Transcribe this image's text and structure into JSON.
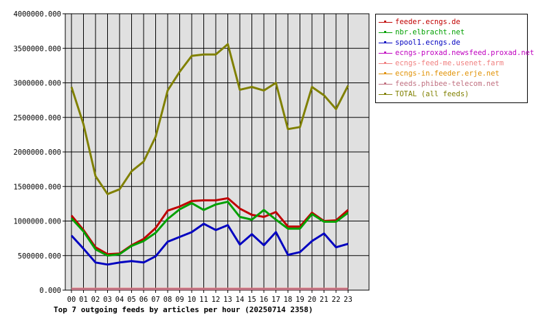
{
  "chart_data": {
    "type": "line",
    "title": "Top 7 outgoing feeds by articles per hour (20250714 2358)",
    "x": [
      "00",
      "01",
      "02",
      "03",
      "04",
      "05",
      "06",
      "07",
      "08",
      "09",
      "10",
      "11",
      "12",
      "13",
      "14",
      "15",
      "16",
      "17",
      "18",
      "19",
      "20",
      "21",
      "22",
      "23"
    ],
    "ylim": [
      0,
      4000000
    ],
    "y_ticks": [
      "0.000",
      "500000.000",
      "1000000.000",
      "1500000.000",
      "2000000.000",
      "2500000.000",
      "3000000.000",
      "3500000.000",
      "4000000.000"
    ],
    "grid": true,
    "legend_position": "top-right",
    "series": [
      {
        "name": "feeder.ecngs.de",
        "color": "#c00000",
        "values": [
          1080000,
          870000,
          620000,
          520000,
          530000,
          650000,
          740000,
          900000,
          1150000,
          1210000,
          1290000,
          1300000,
          1300000,
          1330000,
          1180000,
          1090000,
          1060000,
          1130000,
          920000,
          920000,
          1120000,
          1000000,
          1010000,
          1160000
        ]
      },
      {
        "name": "nbr.elbracht.net",
        "color": "#00a000",
        "values": [
          1040000,
          850000,
          590000,
          500000,
          520000,
          640000,
          710000,
          830000,
          1030000,
          1170000,
          1260000,
          1160000,
          1240000,
          1280000,
          1060000,
          1020000,
          1160000,
          1020000,
          890000,
          890000,
          1100000,
          990000,
          990000,
          1120000
        ]
      },
      {
        "name": "spool1.ecngs.de",
        "color": "#0000c0",
        "values": [
          790000,
          600000,
          400000,
          370000,
          400000,
          420000,
          400000,
          490000,
          700000,
          770000,
          840000,
          960000,
          870000,
          940000,
          660000,
          810000,
          650000,
          840000,
          510000,
          550000,
          710000,
          820000,
          620000,
          670000
        ]
      },
      {
        "name": "ecngs-proxad.newsfeed.proxad.net",
        "color": "#c000c0",
        "values": [
          20000,
          20000,
          20000,
          20000,
          20000,
          20000,
          20000,
          20000,
          20000,
          20000,
          20000,
          20000,
          20000,
          20000,
          20000,
          20000,
          20000,
          20000,
          20000,
          20000,
          20000,
          20000,
          20000,
          20000
        ]
      },
      {
        "name": "ecngs-feed-me.usenet.farm",
        "color": "#f08080",
        "values": [
          20000,
          20000,
          20000,
          20000,
          20000,
          20000,
          20000,
          20000,
          20000,
          20000,
          20000,
          20000,
          20000,
          20000,
          20000,
          20000,
          20000,
          20000,
          20000,
          20000,
          20000,
          20000,
          20000,
          20000
        ]
      },
      {
        "name": "ecngs-in.feeder.erje.net",
        "color": "#e09000",
        "values": [
          15000,
          15000,
          15000,
          15000,
          15000,
          15000,
          15000,
          15000,
          15000,
          15000,
          15000,
          15000,
          15000,
          15000,
          15000,
          15000,
          15000,
          15000,
          15000,
          15000,
          15000,
          15000,
          15000,
          15000
        ]
      },
      {
        "name": "feeds.phibee-telecom.net",
        "color": "#c07080",
        "values": [
          15000,
          15000,
          15000,
          15000,
          15000,
          15000,
          15000,
          15000,
          15000,
          15000,
          15000,
          15000,
          15000,
          15000,
          15000,
          15000,
          15000,
          15000,
          15000,
          15000,
          15000,
          15000,
          15000,
          15000
        ]
      },
      {
        "name": "TOTAL (all feeds)",
        "color": "#808000",
        "values": [
          2940000,
          2400000,
          1650000,
          1390000,
          1460000,
          1720000,
          1860000,
          2220000,
          2890000,
          3160000,
          3390000,
          3410000,
          3410000,
          3560000,
          2900000,
          2940000,
          2890000,
          3000000,
          2330000,
          2360000,
          2940000,
          2820000,
          2620000,
          2960000
        ]
      }
    ]
  },
  "colors": {
    "plot_background": "#e0e0e0",
    "grid": "#000000",
    "axis": "#000000"
  }
}
